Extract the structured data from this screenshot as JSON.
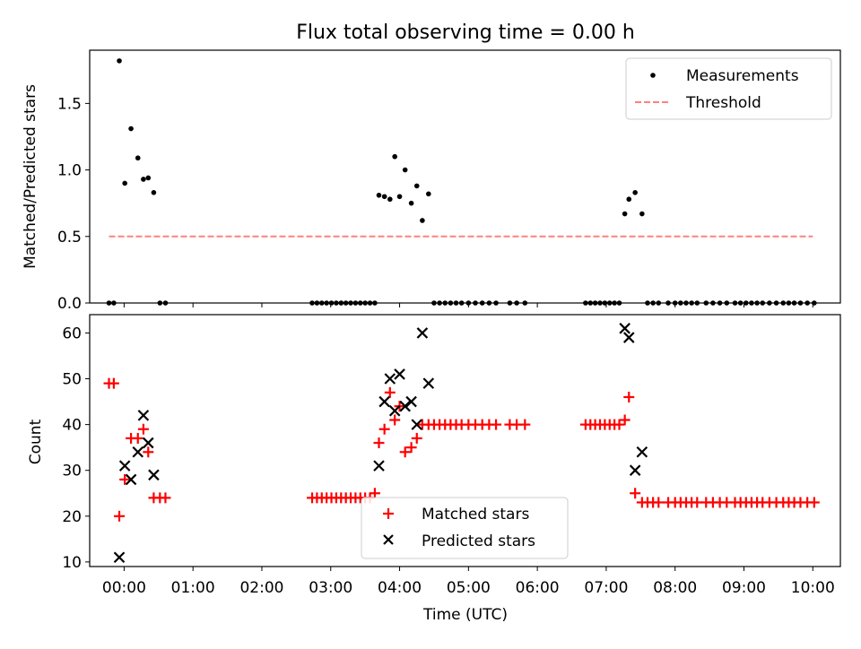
{
  "chart_data": [
    {
      "type": "scatter",
      "title": "Flux total observing time = 0.00 h",
      "xlabel": "",
      "ylabel": "Matched/Predicted stars",
      "xlim": [
        -0.5,
        10.4
      ],
      "ylim": [
        0,
        1.9
      ],
      "yticks": [
        0.0,
        0.5,
        1.0,
        1.5
      ],
      "ytick_labels": [
        "0.0",
        "0.5",
        "1.0",
        "1.5"
      ],
      "xtick_labels_visible": false,
      "legend": {
        "position": "top-right",
        "entries": [
          "Measurements",
          "Threshold"
        ]
      },
      "series": [
        {
          "name": "Measurements",
          "marker": "dot",
          "color": "#000000",
          "x": [
            -0.22,
            -0.15,
            -0.07,
            0.01,
            0.1,
            0.2,
            0.28,
            0.35,
            0.43,
            0.52,
            0.6,
            2.73,
            2.8,
            2.87,
            2.94,
            3.01,
            3.08,
            3.15,
            3.22,
            3.29,
            3.36,
            3.43,
            3.5,
            3.57,
            3.64,
            3.7,
            3.78,
            3.86,
            3.93,
            4.0,
            4.08,
            4.17,
            4.25,
            4.33,
            4.42,
            4.5,
            4.58,
            4.66,
            4.74,
            4.82,
            4.9,
            5.0,
            5.1,
            5.2,
            5.3,
            5.4,
            5.6,
            5.7,
            5.82,
            6.7,
            6.77,
            6.84,
            6.91,
            6.98,
            7.05,
            7.12,
            7.19,
            7.27,
            7.33,
            7.42,
            7.52,
            7.6,
            7.68,
            7.76,
            7.9,
            8.0,
            8.08,
            8.16,
            8.24,
            8.32,
            8.45,
            8.55,
            8.65,
            8.75,
            8.87,
            8.95,
            9.03,
            9.11,
            9.19,
            9.27,
            9.37,
            9.47,
            9.57,
            9.65,
            9.73,
            9.82,
            9.92,
            10.02
          ],
          "y": [
            0,
            0,
            1.82,
            0.9,
            1.31,
            1.09,
            0.93,
            0.94,
            0.83,
            0,
            0,
            0,
            0,
            0,
            0,
            0,
            0,
            0,
            0,
            0,
            0,
            0,
            0,
            0,
            0,
            0.81,
            0.8,
            0.78,
            1.1,
            0.8,
            1.0,
            0.75,
            0.88,
            0.62,
            0.82,
            0,
            0,
            0,
            0,
            0,
            0,
            0,
            0,
            0,
            0,
            0,
            0,
            0,
            0,
            0,
            0,
            0,
            0,
            0,
            0,
            0,
            0,
            0.67,
            0.78,
            0.83,
            0.67,
            0,
            0,
            0,
            0,
            0,
            0,
            0,
            0,
            0,
            0,
            0,
            0,
            0,
            0,
            0,
            0,
            0,
            0,
            0,
            0,
            0,
            0,
            0,
            0,
            0,
            0,
            0
          ]
        },
        {
          "name": "Threshold",
          "line_style": "dashed",
          "color": "#ff8080",
          "x": [
            -0.22,
            10.0
          ],
          "y": [
            0.5,
            0.5
          ]
        }
      ]
    },
    {
      "type": "scatter",
      "title": "",
      "xlabel": "Time (UTC)",
      "ylabel": "Count",
      "xlim": [
        -0.5,
        10.4
      ],
      "ylim": [
        9,
        64
      ],
      "xticks": [
        0,
        1,
        2,
        3,
        4,
        5,
        6,
        7,
        8,
        9,
        10
      ],
      "xtick_labels": [
        "00:00",
        "01:00",
        "02:00",
        "03:00",
        "04:00",
        "05:00",
        "06:00",
        "07:00",
        "08:00",
        "09:00",
        "10:00"
      ],
      "yticks": [
        10,
        20,
        30,
        40,
        50,
        60
      ],
      "ytick_labels": [
        "10",
        "20",
        "30",
        "40",
        "50",
        "60"
      ],
      "legend": {
        "position": "bottom-center",
        "entries": [
          "Matched stars",
          "Predicted stars"
        ]
      },
      "series": [
        {
          "name": "Matched stars",
          "marker": "plus",
          "color": "#ff0000",
          "x": [
            -0.22,
            -0.15,
            -0.07,
            0.01,
            0.1,
            0.2,
            0.28,
            0.35,
            0.43,
            0.52,
            0.6,
            2.73,
            2.8,
            2.87,
            2.94,
            3.01,
            3.08,
            3.15,
            3.22,
            3.29,
            3.36,
            3.43,
            3.5,
            3.57,
            3.64,
            3.7,
            3.78,
            3.86,
            3.93,
            4.0,
            4.08,
            4.17,
            4.25,
            4.33,
            4.42,
            4.5,
            4.58,
            4.66,
            4.74,
            4.82,
            4.9,
            5.0,
            5.1,
            5.2,
            5.3,
            5.4,
            5.6,
            5.7,
            5.82,
            6.7,
            6.77,
            6.84,
            6.91,
            6.98,
            7.05,
            7.12,
            7.19,
            7.27,
            7.33,
            7.42,
            7.52,
            7.6,
            7.68,
            7.76,
            7.9,
            8.0,
            8.08,
            8.16,
            8.24,
            8.32,
            8.45,
            8.55,
            8.65,
            8.75,
            8.87,
            8.95,
            9.03,
            9.11,
            9.19,
            9.27,
            9.37,
            9.47,
            9.57,
            9.65,
            9.73,
            9.82,
            9.92,
            10.02
          ],
          "y": [
            49,
            49,
            20,
            28,
            37,
            37,
            39,
            34,
            24,
            24,
            24,
            24,
            24,
            24,
            24,
            24,
            24,
            24,
            24,
            24,
            24,
            24,
            24,
            24,
            25,
            36,
            39,
            47,
            41,
            44,
            34,
            35,
            37,
            40,
            40,
            40,
            40,
            40,
            40,
            40,
            40,
            40,
            40,
            40,
            40,
            40,
            40,
            40,
            40,
            40,
            40,
            40,
            40,
            40,
            40,
            40,
            40,
            41,
            46,
            25,
            23,
            23,
            23,
            23,
            23,
            23,
            23,
            23,
            23,
            23,
            23,
            23,
            23,
            23,
            23,
            23,
            23,
            23,
            23,
            23,
            23,
            23,
            23,
            23,
            23,
            23,
            23,
            23
          ]
        },
        {
          "name": "Predicted stars",
          "marker": "x",
          "color": "#000000",
          "x": [
            -0.07,
            0.01,
            0.1,
            0.2,
            0.28,
            0.35,
            0.43,
            3.7,
            3.78,
            3.86,
            3.93,
            4.0,
            4.08,
            4.17,
            4.25,
            4.33,
            4.42,
            7.27,
            7.33,
            7.42,
            7.52
          ],
          "y": [
            11,
            31,
            28,
            34,
            42,
            36,
            29,
            31,
            45,
            50,
            43,
            51,
            44,
            45,
            40,
            60,
            49,
            61,
            59,
            30,
            34
          ]
        }
      ]
    }
  ]
}
